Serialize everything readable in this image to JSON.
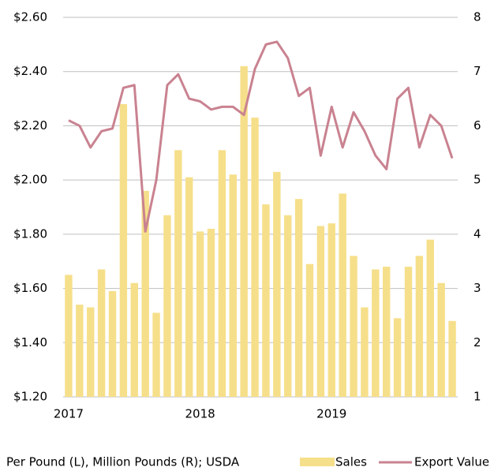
{
  "chart_data": {
    "type": "combo",
    "categories": [
      "2017",
      null,
      null,
      null,
      null,
      null,
      null,
      null,
      null,
      null,
      null,
      null,
      "2018",
      null,
      null,
      null,
      null,
      null,
      null,
      null,
      null,
      null,
      null,
      null,
      "2019",
      null,
      null,
      null,
      null,
      null,
      null,
      null,
      null,
      null,
      null,
      null
    ],
    "series": [
      {
        "name": "Sales",
        "type": "bar",
        "axis": "y2",
        "color": "#f6df8a",
        "values": [
          3.25,
          2.7,
          2.65,
          3.35,
          2.95,
          6.4,
          3.1,
          4.8,
          2.55,
          4.35,
          5.55,
          5.05,
          4.05,
          4.1,
          5.55,
          5.1,
          7.1,
          6.15,
          4.55,
          5.15,
          4.35,
          4.65,
          3.45,
          4.15,
          4.2,
          4.75,
          3.6,
          2.65,
          3.35,
          3.4,
          2.45,
          3.4,
          3.6,
          3.9,
          3.1,
          2.4
        ]
      },
      {
        "name": "Export Value",
        "type": "line",
        "axis": "y",
        "color": "#c98290",
        "values": [
          2.22,
          2.2,
          2.12,
          2.18,
          2.19,
          2.34,
          2.35,
          1.81,
          2.0,
          2.35,
          2.39,
          2.3,
          2.29,
          2.26,
          2.27,
          2.27,
          2.24,
          2.41,
          2.5,
          2.51,
          2.45,
          2.31,
          2.34,
          2.09,
          2.27,
          2.12,
          2.25,
          2.18,
          2.09,
          2.04,
          2.3,
          2.34,
          2.12,
          2.24,
          2.2,
          2.08
        ]
      }
    ],
    "ylim": [
      1.2,
      2.6
    ],
    "yticks": [
      {
        "value": 1.2,
        "label": "$1.20"
      },
      {
        "value": 1.4,
        "label": "$1.40"
      },
      {
        "value": 1.6,
        "label": "$1.60"
      },
      {
        "value": 1.8,
        "label": "$1.80"
      },
      {
        "value": 2.0,
        "label": "$2.00"
      },
      {
        "value": 2.2,
        "label": "$2.20"
      },
      {
        "value": 2.4,
        "label": "$2.40"
      },
      {
        "value": 2.6,
        "label": "$2.60"
      }
    ],
    "y2lim": [
      1,
      8
    ],
    "y2ticks": [
      1,
      2,
      3,
      4,
      5,
      6,
      7,
      8
    ],
    "grid": true,
    "note": "Per Pound (L), Million Pounds (R); USDA",
    "legend": "bottom-right"
  }
}
